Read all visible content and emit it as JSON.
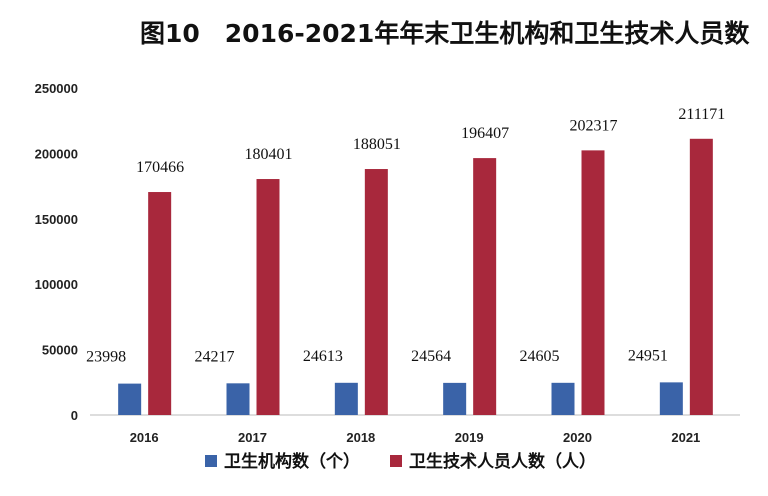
{
  "chart_data": {
    "type": "bar",
    "title": "图10　2016-2021年年末卫生机构和卫生技术人员数",
    "categories": [
      "2016",
      "2017",
      "2018",
      "2019",
      "2020",
      "2021"
    ],
    "series": [
      {
        "name": "卫生机构数（个）",
        "color": "#3a63a8",
        "values": [
          23998,
          24217,
          24613,
          24564,
          24605,
          24951
        ]
      },
      {
        "name": "卫生技术人员人数（人）",
        "color": "#a8283c",
        "values": [
          170466,
          180401,
          188051,
          196407,
          202317,
          211171
        ]
      }
    ],
    "yticks": [
      0,
      50000,
      100000,
      150000,
      200000,
      250000
    ],
    "ylim": [
      0,
      250000
    ],
    "grid": false,
    "legend": "bottom"
  }
}
